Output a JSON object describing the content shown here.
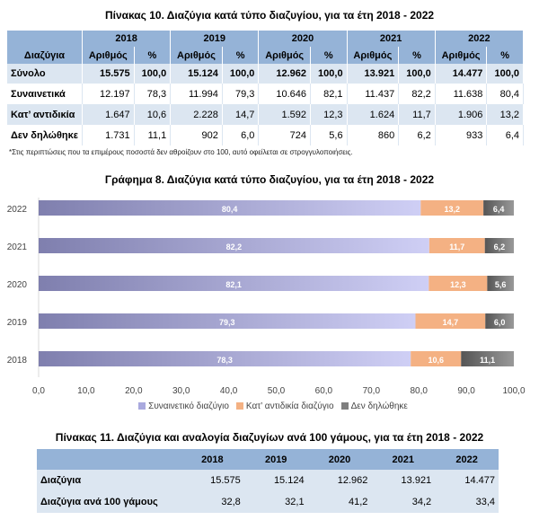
{
  "table10": {
    "title": "Πίνακας 10. Διαζύγια κατά τύπο διαζυγίου, για τα έτη 2018 - 2022",
    "years": [
      "2018",
      "2019",
      "2020",
      "2021",
      "2022"
    ],
    "row_header": "Διαζύγια",
    "sub_count": "Αριθμός",
    "sub_pct": "%",
    "rows": [
      {
        "label": "Σύνολο",
        "cells": [
          "15.575",
          "100,0",
          "15.124",
          "100,0",
          "12.962",
          "100,0",
          "13.921",
          "100,0",
          "14.477",
          "100,0"
        ]
      },
      {
        "label": "Συναινετικά",
        "cells": [
          "12.197",
          "78,3",
          "11.994",
          "79,3",
          "10.646",
          "82,1",
          "11.437",
          "82,2",
          "11.638",
          "80,4"
        ]
      },
      {
        "label": "Κατ’ αντιδικία",
        "cells": [
          "1.647",
          "10,6",
          "2.228",
          "14,7",
          "1.592",
          "12,3",
          "1.624",
          "11,7",
          "1.906",
          "13,2"
        ]
      },
      {
        "label": "Δεν δηλώθηκε",
        "cells": [
          "1.731",
          "11,1",
          "902",
          "6,0",
          "724",
          "5,6",
          "860",
          "6,2",
          "933",
          "6,4"
        ]
      }
    ],
    "footnote": "*Στις περιπτώσεις που τα επιμέρους ποσοστά δεν αθροίζουν στο 100, αυτό οφείλεται σε στρογγυλοποιήσεις."
  },
  "chart_data": {
    "type": "bar",
    "orientation": "horizontal",
    "stacked": true,
    "title": "Γράφημα 8. Διαζύγια κατά τύπο διαζυγίου, για τα έτη 2018 - 2022",
    "categories": [
      "2022",
      "2021",
      "2020",
      "2019",
      "2018"
    ],
    "series": [
      {
        "name": "Συναινετικό διαζύγιο",
        "color": "#a9a9de",
        "values": [
          80.4,
          82.2,
          82.1,
          79.3,
          78.3
        ],
        "labels": [
          "80,4",
          "82,2",
          "82,1",
          "79,3",
          "78,3"
        ]
      },
      {
        "name": "Κατ’ αντιδικία διαζύγιο",
        "color": "#f4b183",
        "values": [
          13.2,
          11.7,
          12.3,
          14.7,
          10.6
        ],
        "labels": [
          "13,2",
          "11,7",
          "12,3",
          "14,7",
          "10,6"
        ]
      },
      {
        "name": "Δεν δηλώθηκε",
        "color": "#7f7f7f",
        "values": [
          6.4,
          6.2,
          5.6,
          6.0,
          11.1
        ],
        "labels": [
          "6,4",
          "6,2",
          "5,6",
          "6,0",
          "11,1"
        ]
      }
    ],
    "xlim": [
      0,
      100
    ],
    "xticks": [
      "0,0",
      "10,0",
      "20,0",
      "30,0",
      "40,0",
      "50,0",
      "60,0",
      "70,0",
      "80,0",
      "90,0",
      "100,0"
    ],
    "legend": "bottom"
  },
  "table11": {
    "title": "Πίνακας 11. Διαζύγια και αναλογία διαζυγίων ανά 100 γάμους, για τα έτη 2018 - 2022",
    "years": [
      "2018",
      "2019",
      "2020",
      "2021",
      "2022"
    ],
    "rows": [
      {
        "label": "Διαζύγια",
        "cells": [
          "15.575",
          "15.124",
          "12.962",
          "13.921",
          "14.477"
        ]
      },
      {
        "label": "Διαζύγια ανά 100 γάμους",
        "cells": [
          "32,8",
          "32,1",
          "41,2",
          "34,2",
          "33,4"
        ]
      }
    ]
  }
}
